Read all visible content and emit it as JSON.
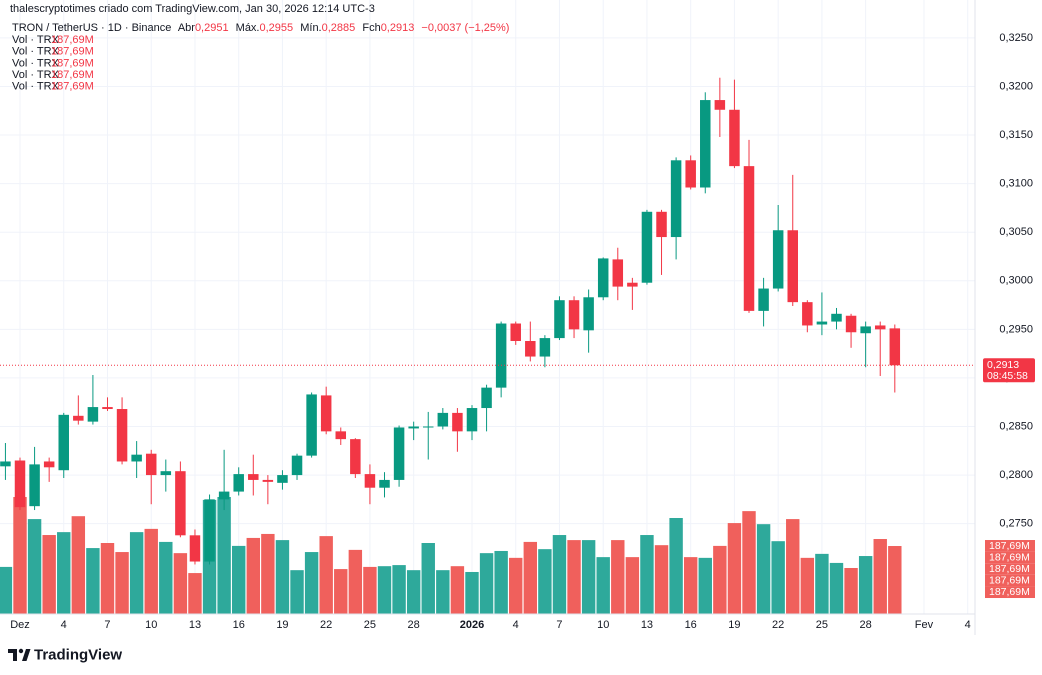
{
  "credit": "thalescryptotimes criado com TradingView.com, Jan 30, 2026 12:14 UTC-3",
  "brand": "TradingView",
  "chart_data": {
    "type": "candlestick",
    "symbol": "TRON / TetherUS · 1D · Binance",
    "ohlc_legend": {
      "open_name": "Abr",
      "open": "0,2951",
      "high_name": "Máx.",
      "high": "0,2955",
      "low_name": "Mín.",
      "low": "0,2885",
      "close_name": "Fch",
      "close": "0,2913",
      "change": "−0,0037 (−1,25%)"
    },
    "indicators": [
      {
        "name": "Vol · TRX",
        "value_label": "187,69M"
      },
      {
        "name": "Vol · TRX",
        "value_label": "187,69M"
      },
      {
        "name": "Vol · TRX",
        "value_label": "187,69M"
      },
      {
        "name": "Vol · TRX",
        "value_label": "187,69M"
      },
      {
        "name": "Vol · TRX",
        "value_label": "187,69M"
      }
    ],
    "open": [
      0.2809,
      0.2815,
      0.2768,
      0.2814,
      0.2805,
      0.2861,
      0.2855,
      0.287,
      0.2868,
      0.2814,
      0.2822,
      0.28,
      0.2804,
      0.2738,
      0.2711,
      0.2775,
      0.2783,
      0.2801,
      0.2795,
      0.2792,
      0.28,
      0.282,
      0.2882,
      0.2845,
      0.2837,
      0.2801,
      0.2787,
      0.2795,
      0.2848,
      0.2849,
      0.285,
      0.2864,
      0.2845,
      0.2869,
      0.289,
      0.2956,
      0.2938,
      0.2922,
      0.2941,
      0.298,
      0.2949,
      0.2983,
      0.3022,
      0.2998,
      0.2998,
      0.3071,
      0.3045,
      0.3124,
      0.3096,
      0.3186,
      0.3176,
      0.3118,
      0.2969,
      0.2992,
      0.3052,
      0.2978,
      0.2955,
      0.2958,
      0.2964,
      0.2946,
      0.2954,
      0.2951
    ],
    "high": [
      0.2833,
      0.2818,
      0.2829,
      0.2818,
      0.2864,
      0.2882,
      0.2903,
      0.288,
      0.288,
      0.2835,
      0.2826,
      0.2816,
      0.2814,
      0.2744,
      0.278,
      0.2826,
      0.2808,
      0.2821,
      0.28,
      0.2805,
      0.2822,
      0.2885,
      0.2891,
      0.2849,
      0.2838,
      0.2811,
      0.2803,
      0.2851,
      0.2855,
      0.2865,
      0.2869,
      0.2869,
      0.2872,
      0.2893,
      0.2958,
      0.2958,
      0.2958,
      0.2944,
      0.2984,
      0.2984,
      0.2991,
      0.3024,
      0.3034,
      0.3003,
      0.3073,
      0.3073,
      0.3127,
      0.3129,
      0.3194,
      0.3209,
      0.3207,
      0.3145,
      0.3003,
      0.3078,
      0.3109,
      0.298,
      0.2988,
      0.2972,
      0.2966,
      0.2958,
      0.2958,
      0.2955
    ],
    "low": [
      0.2795,
      0.2764,
      0.2764,
      0.2793,
      0.2797,
      0.2852,
      0.2852,
      0.2866,
      0.2811,
      0.2797,
      0.277,
      0.2783,
      0.2736,
      0.2708,
      0.2708,
      0.2764,
      0.2779,
      0.2779,
      0.277,
      0.2785,
      0.2795,
      0.2818,
      0.2842,
      0.2831,
      0.2797,
      0.277,
      0.2777,
      0.2788,
      0.2836,
      0.2816,
      0.2847,
      0.2824,
      0.2836,
      0.2845,
      0.288,
      0.2934,
      0.2917,
      0.2911,
      0.2939,
      0.2941,
      0.2926,
      0.298,
      0.298,
      0.297,
      0.2996,
      0.3006,
      0.3022,
      0.3094,
      0.309,
      0.3148,
      0.3116,
      0.2967,
      0.2953,
      0.2989,
      0.2974,
      0.2947,
      0.2944,
      0.295,
      0.2931,
      0.2911,
      0.2902,
      0.2885
    ],
    "close": [
      0.2814,
      0.2767,
      0.2811,
      0.2808,
      0.2862,
      0.2856,
      0.287,
      0.2868,
      0.2814,
      0.2821,
      0.28,
      0.2804,
      0.2738,
      0.2711,
      0.2775,
      0.2783,
      0.2801,
      0.2795,
      0.2793,
      0.28,
      0.282,
      0.2883,
      0.2845,
      0.2837,
      0.2801,
      0.2787,
      0.2795,
      0.2849,
      0.285,
      0.285,
      0.2864,
      0.2845,
      0.2869,
      0.289,
      0.2956,
      0.2938,
      0.2922,
      0.2941,
      0.298,
      0.295,
      0.2983,
      0.3023,
      0.2994,
      0.2994,
      0.3071,
      0.3045,
      0.3124,
      0.3096,
      0.3186,
      0.3176,
      0.3118,
      0.2969,
      0.2992,
      0.3052,
      0.2978,
      0.2954,
      0.2958,
      0.2966,
      0.2947,
      0.2953,
      0.295,
      0.2913
    ],
    "volume": [
      130,
      323,
      262,
      218,
      226,
      270,
      182,
      196,
      171,
      226,
      235,
      199,
      168,
      113,
      315,
      323,
      188,
      210,
      221,
      204,
      121,
      171,
      215,
      124,
      177,
      130,
      132,
      135,
      121,
      196,
      121,
      132,
      116,
      168,
      174,
      155,
      199,
      179,
      218,
      204,
      204,
      157,
      204,
      157,
      218,
      190,
      265,
      157,
      155,
      188,
      251,
      284,
      248,
      201,
      262,
      155,
      166,
      141,
      127,
      160,
      207,
      187.69
    ],
    "up_color": "#089981",
    "down_color": "#f23645",
    "volume_up_color": "#2ea99b",
    "volume_down_color": "#f0605c",
    "last_price": {
      "value": 0.2913,
      "label": "0,2913"
    },
    "countdown": "08:45:58",
    "xlim": [
      -0.372,
      66.5
    ],
    "xticks": [
      {
        "value": 1,
        "label": "Dez"
      },
      {
        "value": 4,
        "label": "4"
      },
      {
        "value": 7,
        "label": "7"
      },
      {
        "value": 10,
        "label": "10"
      },
      {
        "value": 13,
        "label": "13"
      },
      {
        "value": 16,
        "label": "16"
      },
      {
        "value": 19,
        "label": "19"
      },
      {
        "value": 22,
        "label": "22"
      },
      {
        "value": 25,
        "label": "25"
      },
      {
        "value": 28,
        "label": "28"
      },
      {
        "value": 32,
        "label": "2026"
      },
      {
        "value": 35,
        "label": "4"
      },
      {
        "value": 38,
        "label": "7"
      },
      {
        "value": 41,
        "label": "10"
      },
      {
        "value": 44,
        "label": "13"
      },
      {
        "value": 47,
        "label": "16"
      },
      {
        "value": 50,
        "label": "19"
      },
      {
        "value": 53,
        "label": "22"
      },
      {
        "value": 56,
        "label": "25"
      },
      {
        "value": 59,
        "label": "28"
      },
      {
        "value": 63,
        "label": "Fev"
      },
      {
        "value": 66,
        "label": "4"
      }
    ],
    "ylim": [
      0.2657,
      0.3289
    ],
    "yticks": [
      {
        "value": 0.275,
        "label": "0,2750"
      },
      {
        "value": 0.28,
        "label": "0,2800"
      },
      {
        "value": 0.285,
        "label": "0,2850"
      },
      {
        "value": 0.29,
        "label": "0,2900"
      },
      {
        "value": 0.295,
        "label": "0,2950"
      },
      {
        "value": 0.3,
        "label": "0,3000"
      },
      {
        "value": 0.305,
        "label": "0,3050"
      },
      {
        "value": 0.31,
        "label": "0,3100"
      },
      {
        "value": 0.315,
        "label": "0,3150"
      },
      {
        "value": 0.32,
        "label": "0,3200"
      },
      {
        "value": 0.325,
        "label": "0,3250"
      }
    ],
    "y2lim": [
      0,
      1695
    ],
    "grid": true
  }
}
